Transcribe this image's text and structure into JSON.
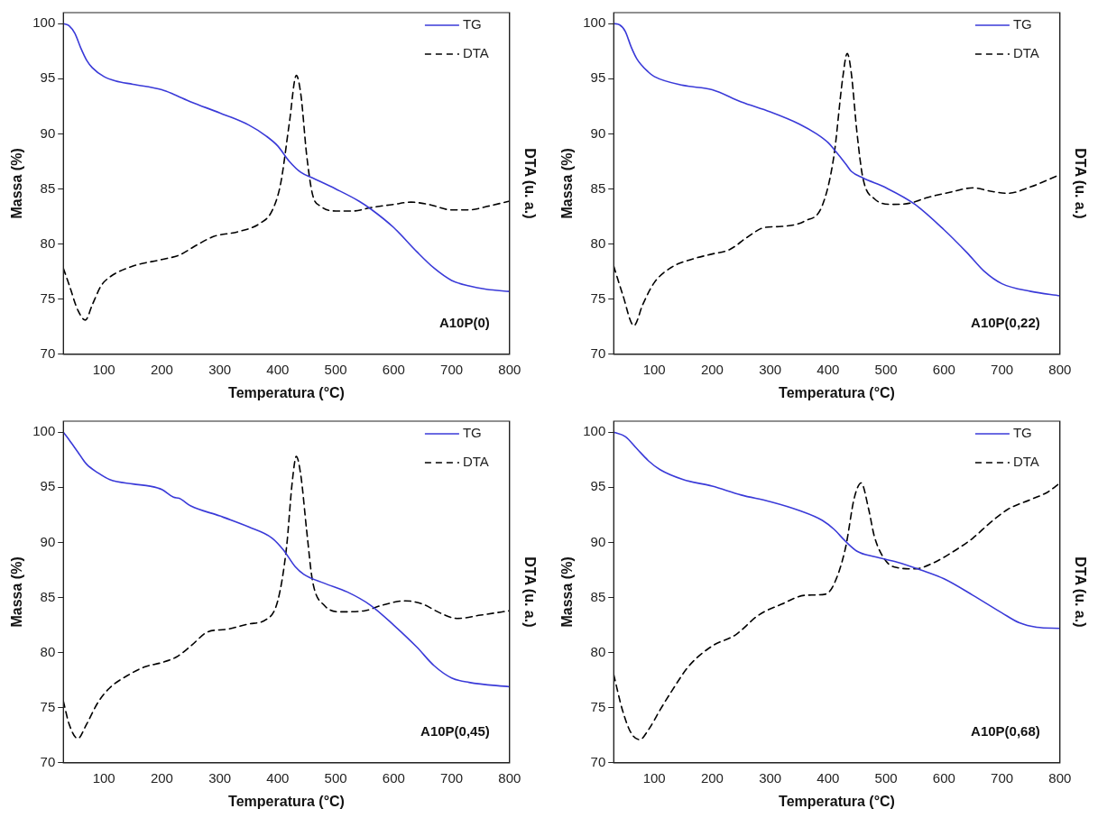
{
  "chart_data": [
    {
      "type": "line",
      "xlabel": "Temperatura (°C)",
      "ylabel": "Massa (%)",
      "y2label": "DTA (u. a.)",
      "annotations": [
        "A10P(0)"
      ],
      "legend": "top right",
      "grid": false,
      "marker": "none",
      "xlim": [
        30,
        800
      ],
      "xticks": [
        100,
        200,
        300,
        400,
        500,
        600,
        700,
        800
      ],
      "ylim": [
        70,
        101
      ],
      "yticks": [
        70,
        75,
        80,
        85,
        90,
        95,
        100
      ],
      "series": [
        {
          "name": "TG",
          "type": "line",
          "color": "#3a3ad8",
          "line_style": "solid",
          "x": [
            30,
            40,
            50,
            60,
            70,
            80,
            100,
            120,
            150,
            200,
            220,
            250,
            300,
            350,
            380,
            400,
            420,
            440,
            460,
            500,
            540,
            560,
            600,
            640,
            670,
            700,
            730,
            760,
            800
          ],
          "values": [
            100,
            99.8,
            99.1,
            97.8,
            96.7,
            96,
            95.2,
            94.8,
            94.5,
            94.0,
            93.6,
            92.9,
            91.9,
            90.8,
            89.8,
            88.9,
            87.5,
            86.5,
            86.0,
            85.0,
            83.9,
            83.2,
            81.5,
            79.3,
            77.8,
            76.7,
            76.2,
            75.9,
            75.7
          ]
        },
        {
          "name": "DTA",
          "type": "line",
          "color": "#000000",
          "line_style": "dashed",
          "x": [
            30,
            40,
            55,
            68,
            80,
            95,
            110,
            150,
            200,
            230,
            260,
            290,
            330,
            370,
            390,
            405,
            420,
            432,
            440,
            450,
            460,
            475,
            500,
            530,
            560,
            600,
            630,
            660,
            700,
            730,
            760,
            800
          ],
          "values": [
            77.8,
            76.3,
            74,
            73.1,
            74.5,
            76.2,
            77,
            78,
            78.6,
            79.0,
            79.9,
            80.7,
            81.1,
            81.9,
            83,
            85.5,
            91,
            95.3,
            93.5,
            88,
            84.5,
            83.4,
            83,
            83,
            83.3,
            83.6,
            83.8,
            83.6,
            83.1,
            83.1,
            83.4,
            83.9
          ]
        }
      ]
    },
    {
      "type": "line",
      "xlabel": "Temperatura (°C)",
      "ylabel": "Massa (%)",
      "y2label": "DTA (u. a.)",
      "annotations": [
        "A10P(0,22)"
      ],
      "legend": "top right",
      "grid": false,
      "marker": "none",
      "xlim": [
        30,
        800
      ],
      "xticks": [
        100,
        200,
        300,
        400,
        500,
        600,
        700,
        800
      ],
      "ylim": [
        70,
        101
      ],
      "yticks": [
        70,
        75,
        80,
        85,
        90,
        95,
        100
      ],
      "series": [
        {
          "name": "TG",
          "type": "line",
          "color": "#3a3ad8",
          "line_style": "solid",
          "x": [
            30,
            40,
            50,
            60,
            70,
            90,
            100,
            150,
            200,
            250,
            300,
            350,
            380,
            400,
            410,
            430,
            440,
            460,
            500,
            550,
            600,
            640,
            670,
            700,
            750,
            800
          ],
          "values": [
            100,
            99.9,
            99.3,
            97.9,
            96.8,
            95.6,
            95.2,
            94.4,
            94.0,
            92.9,
            92.0,
            90.9,
            90.0,
            89.2,
            88.6,
            87.3,
            86.6,
            86.0,
            85.1,
            83.6,
            81.3,
            79.2,
            77.5,
            76.4,
            75.7,
            75.3
          ]
        },
        {
          "name": "DTA",
          "type": "line",
          "color": "#000000",
          "line_style": "dashed",
          "x": [
            30,
            45,
            65,
            80,
            100,
            130,
            170,
            200,
            230,
            260,
            290,
            320,
            360,
            390,
            410,
            425,
            433,
            440,
            450,
            460,
            480,
            510,
            540,
            570,
            610,
            650,
            680,
            710,
            750,
            800
          ],
          "values": [
            78,
            75.5,
            72.6,
            74.5,
            76.5,
            77.9,
            78.7,
            79.1,
            79.5,
            80.6,
            81.5,
            81.6,
            82.1,
            83.5,
            88,
            95,
            97.3,
            95.5,
            90,
            86,
            84.1,
            83.6,
            83.7,
            84.2,
            84.7,
            85.1,
            84.8,
            84.6,
            85.2,
            86.3
          ]
        }
      ]
    },
    {
      "type": "line",
      "xlabel": "Temperatura (°C)",
      "ylabel": "Massa (%)",
      "y2label": "DTA (u. a.)",
      "annotations": [
        "A10P(0,45)"
      ],
      "legend": "top right",
      "grid": false,
      "marker": "none",
      "xlim": [
        30,
        800
      ],
      "xticks": [
        100,
        200,
        300,
        400,
        500,
        600,
        700,
        800
      ],
      "ylim": [
        70,
        101
      ],
      "yticks": [
        70,
        75,
        80,
        85,
        90,
        95,
        100
      ],
      "series": [
        {
          "name": "TG",
          "type": "line",
          "color": "#3a3ad8",
          "line_style": "solid",
          "x": [
            30,
            40,
            55,
            70,
            90,
            110,
            150,
            180,
            200,
            220,
            230,
            250,
            300,
            350,
            390,
            410,
            430,
            445,
            480,
            520,
            560,
            600,
            640,
            670,
            700,
            730,
            800
          ],
          "values": [
            100,
            99.3,
            98.2,
            97.1,
            96.3,
            95.7,
            95.3,
            95.1,
            94.8,
            94.1,
            94.0,
            93.3,
            92.4,
            91.4,
            90.4,
            89.3,
            87.8,
            87.1,
            86.3,
            85.5,
            84.3,
            82.5,
            80.5,
            78.8,
            77.7,
            77.3,
            76.9
          ]
        },
        {
          "name": "DTA",
          "type": "line",
          "color": "#000000",
          "line_style": "dashed",
          "x": [
            30,
            40,
            55,
            70,
            90,
            110,
            140,
            170,
            200,
            225,
            250,
            280,
            310,
            350,
            380,
            400,
            415,
            425,
            432,
            440,
            450,
            460,
            480,
            510,
            550,
            580,
            620,
            650,
            680,
            710,
            750,
            800
          ],
          "values": [
            75.6,
            73.5,
            72.2,
            73.5,
            75.5,
            76.8,
            77.9,
            78.7,
            79.1,
            79.6,
            80.6,
            81.9,
            82.1,
            82.6,
            83,
            84.7,
            89.5,
            95.5,
            97.8,
            96,
            91,
            86.5,
            84.3,
            83.7,
            83.8,
            84.3,
            84.7,
            84.4,
            83.6,
            83.1,
            83.4,
            83.8
          ]
        }
      ]
    },
    {
      "type": "line",
      "xlabel": "Temperatura (°C)",
      "ylabel": "Massa (%)",
      "y2label": "DTA (u. a.)",
      "annotations": [
        "A10P(0,68)"
      ],
      "legend": "top right",
      "grid": false,
      "marker": "none",
      "xlim": [
        30,
        800
      ],
      "xticks": [
        100,
        200,
        300,
        400,
        500,
        600,
        700,
        800
      ],
      "ylim": [
        70,
        101
      ],
      "yticks": [
        70,
        75,
        80,
        85,
        90,
        95,
        100
      ],
      "series": [
        {
          "name": "TG",
          "type": "line",
          "color": "#3a3ad8",
          "line_style": "solid",
          "x": [
            30,
            50,
            70,
            90,
            110,
            150,
            200,
            250,
            300,
            350,
            390,
            410,
            430,
            450,
            480,
            520,
            560,
            600,
            650,
            700,
            730,
            760,
            800
          ],
          "values": [
            100,
            99.6,
            98.5,
            97.4,
            96.6,
            95.7,
            95.1,
            94.3,
            93.7,
            92.9,
            92,
            91.2,
            90.1,
            89.2,
            88.7,
            88.2,
            87.5,
            86.7,
            85.2,
            83.6,
            82.7,
            82.3,
            82.2
          ]
        },
        {
          "name": "DTA",
          "type": "line",
          "color": "#000000",
          "line_style": "dashed",
          "x": [
            30,
            45,
            60,
            75,
            90,
            110,
            130,
            160,
            200,
            240,
            280,
            320,
            360,
            395,
            410,
            430,
            445,
            457,
            470,
            480,
            500,
            520,
            550,
            580,
            620,
            650,
            680,
            710,
            750,
            780,
            800
          ],
          "values": [
            78,
            74.8,
            72.7,
            72.1,
            73,
            74.8,
            76.5,
            78.8,
            80.6,
            81.6,
            83.4,
            84.4,
            85.2,
            85.3,
            86.2,
            89.5,
            94,
            95.4,
            93,
            90.5,
            88.3,
            87.7,
            87.6,
            88.1,
            89.3,
            90.4,
            91.8,
            93.0,
            93.9,
            94.6,
            95.4
          ]
        }
      ]
    }
  ]
}
